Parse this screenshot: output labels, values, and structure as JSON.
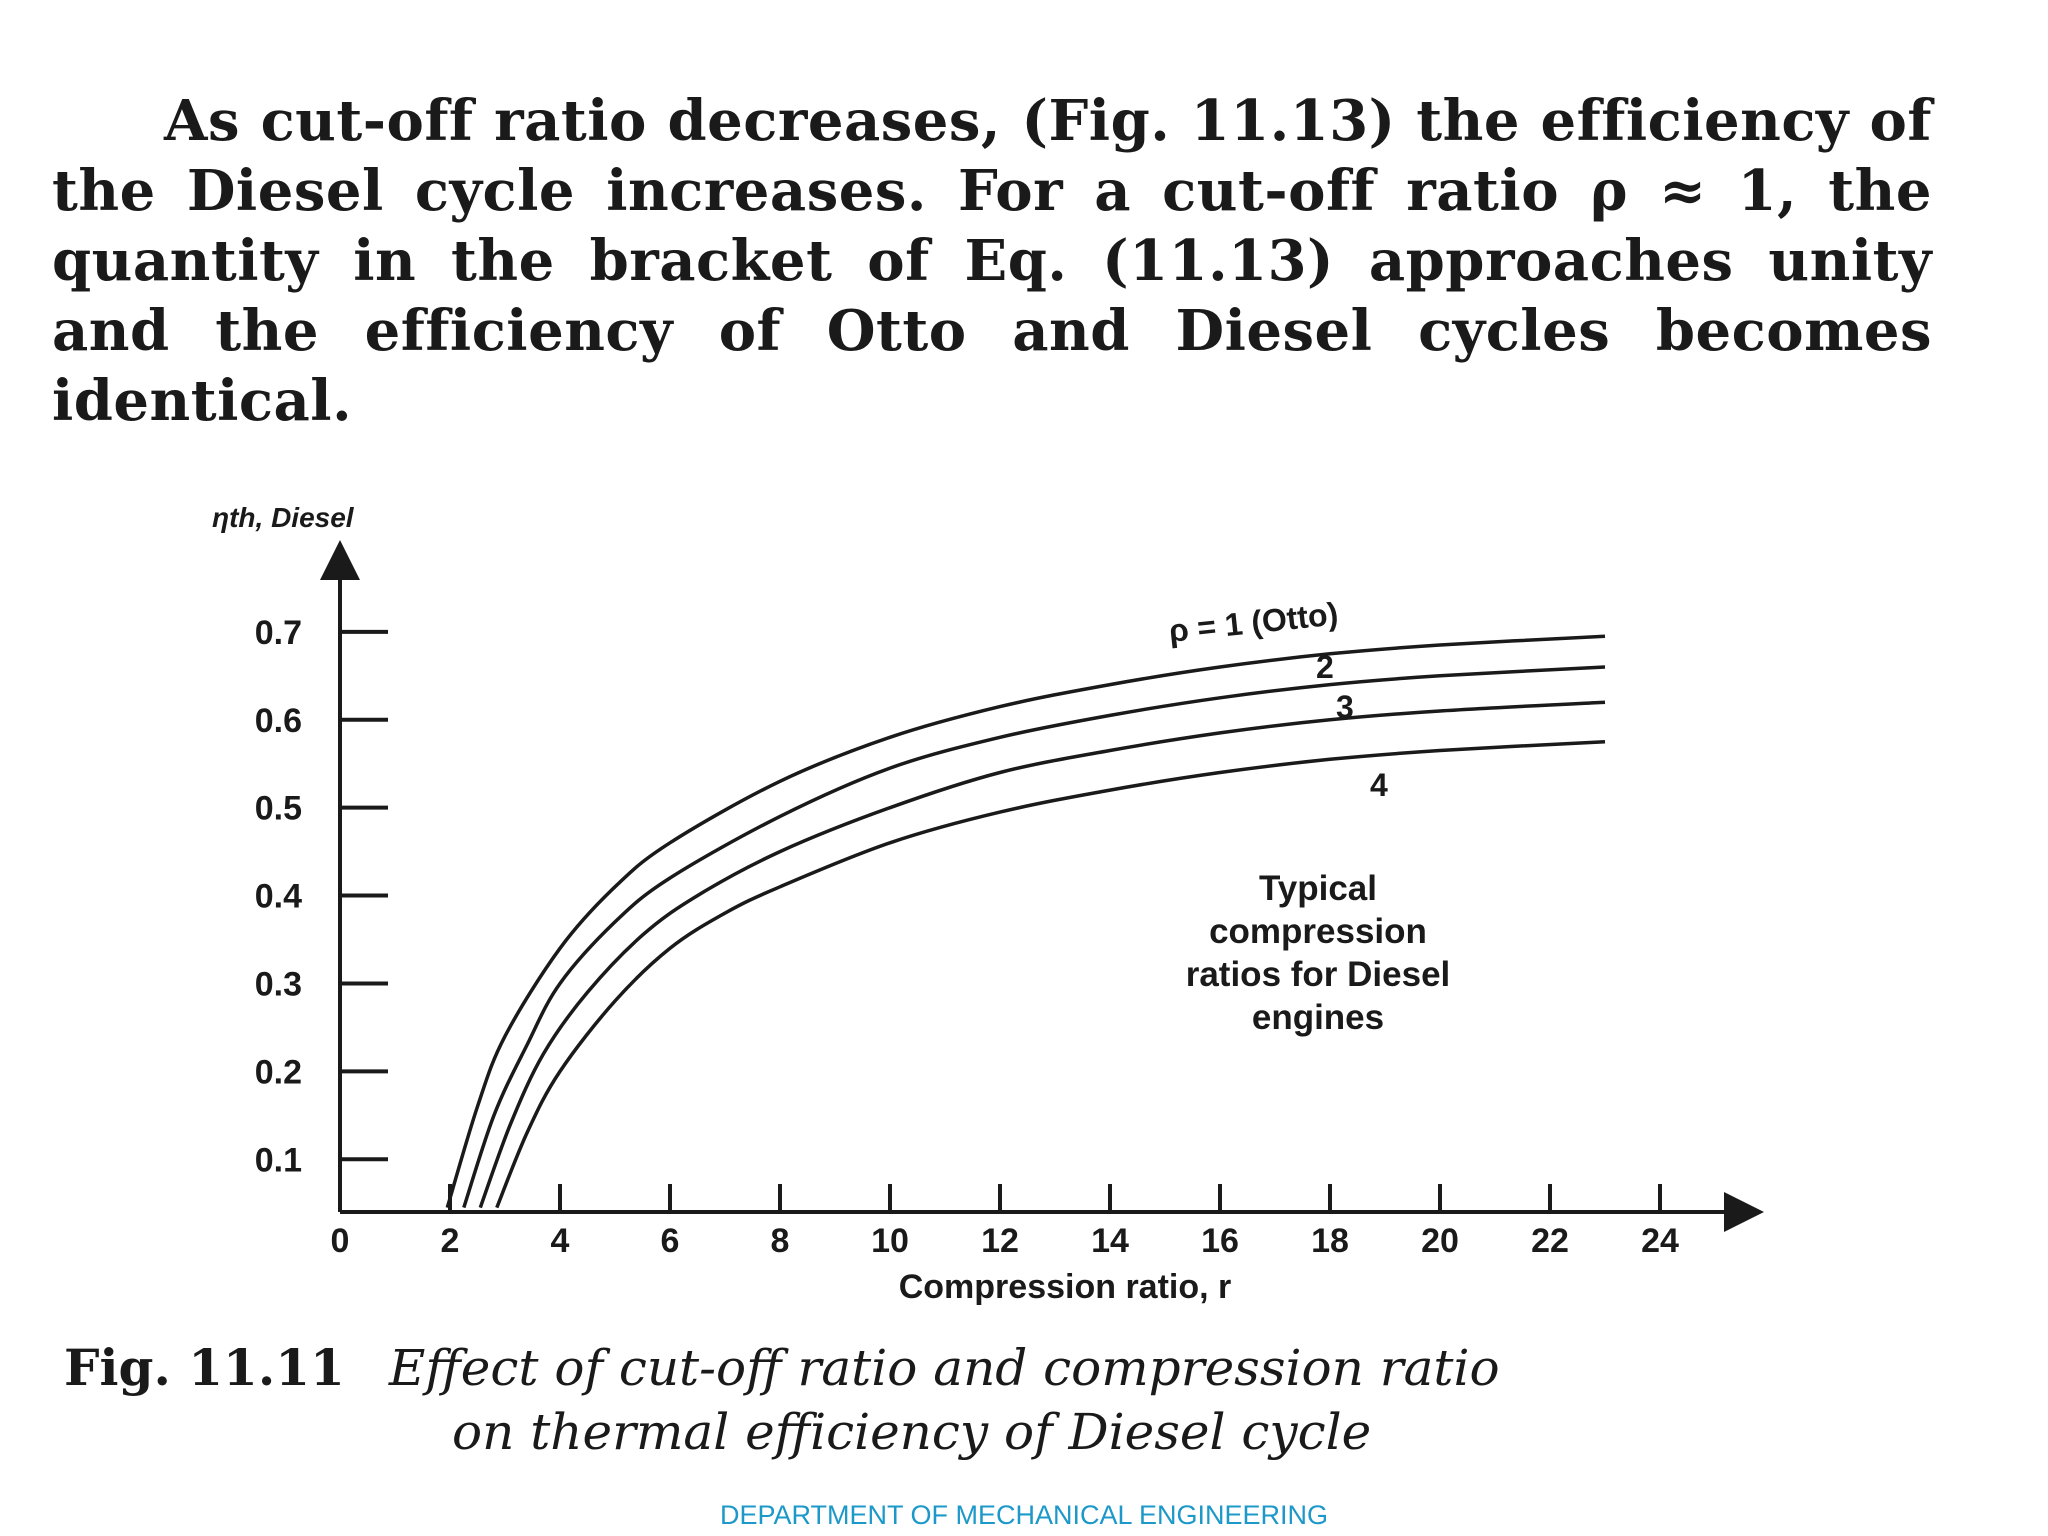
{
  "paragraph": {
    "text": "As cut-off ratio decreases, (Fig. 11.13) the efficiency of the Diesel cycle increases. For a cut-off ratio ρ ≈ 1, the quantity in the bracket of Eq. (11.13) approaches unity and the efficiency of Otto and Diesel cycles becomes identical."
  },
  "chart_data": {
    "type": "line",
    "title": "",
    "xlabel": "Compression ratio, r",
    "ylabel": "ηth, Diesel",
    "xlim": [
      0,
      25
    ],
    "ylim": [
      0.04,
      0.75
    ],
    "x_ticks": [
      0,
      2,
      4,
      6,
      8,
      10,
      12,
      14,
      16,
      18,
      20,
      22,
      24
    ],
    "x_tick_labels": [
      "0",
      "2",
      "4",
      "6",
      "8",
      "10",
      "12",
      "14",
      "16",
      "18",
      "20",
      "22",
      "24"
    ],
    "y_ticks": [
      0.1,
      0.2,
      0.3,
      0.4,
      0.5,
      0.6,
      0.7
    ],
    "y_tick_labels": [
      "0.1",
      "0.2",
      "0.3",
      "0.4",
      "0.5",
      "0.6",
      "0.7"
    ],
    "series": [
      {
        "name": "ρ = 1 (Otto)",
        "label": "ρ = 1 (Otto)",
        "x": [
          1.95,
          2.5,
          3,
          4,
          5,
          6,
          8,
          10,
          12,
          14,
          16,
          18,
          20,
          23
        ],
        "values": [
          0.045,
          0.16,
          0.24,
          0.34,
          0.41,
          0.46,
          0.53,
          0.58,
          0.615,
          0.64,
          0.66,
          0.675,
          0.685,
          0.695
        ]
      },
      {
        "name": "ρ = 2",
        "label": "2",
        "x": [
          2.25,
          2.8,
          3.4,
          4,
          5,
          6,
          8,
          10,
          12,
          14,
          16,
          18,
          20,
          23
        ],
        "values": [
          0.045,
          0.15,
          0.23,
          0.3,
          0.37,
          0.42,
          0.49,
          0.545,
          0.58,
          0.605,
          0.625,
          0.64,
          0.65,
          0.66
        ]
      },
      {
        "name": "ρ = 3",
        "label": "3",
        "x": [
          2.55,
          3.1,
          3.7,
          4.5,
          5.5,
          6.5,
          8,
          10,
          12,
          14,
          16,
          18,
          20,
          23
        ],
        "values": [
          0.045,
          0.14,
          0.22,
          0.29,
          0.355,
          0.4,
          0.45,
          0.5,
          0.54,
          0.565,
          0.585,
          0.6,
          0.61,
          0.62
        ]
      },
      {
        "name": "ρ = 4",
        "label": "4",
        "x": [
          2.85,
          3.4,
          4,
          5,
          6,
          7,
          8,
          10,
          12,
          14,
          16,
          18,
          20,
          23
        ],
        "values": [
          0.045,
          0.13,
          0.2,
          0.28,
          0.34,
          0.38,
          0.41,
          0.46,
          0.495,
          0.52,
          0.54,
          0.555,
          0.565,
          0.575
        ]
      }
    ],
    "annotation": [
      "Typical",
      "compression",
      "ratios for Diesel",
      "engines"
    ]
  },
  "caption": {
    "figure_label": "Fig. 11.11",
    "line1": "Effect of cut-off ratio and compression ratio",
    "line2": "on thermal efficiency of Diesel cycle"
  },
  "footer": {
    "text": "DEPARTMENT OF MECHANICAL ENGINEERING"
  },
  "colors": {
    "ink": "#1a1a1a",
    "footer": "#1c98c9"
  }
}
